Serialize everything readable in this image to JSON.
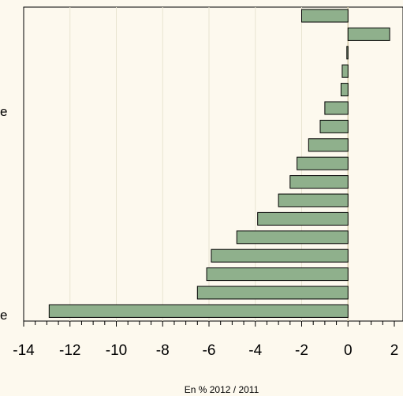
{
  "chart_data": {
    "type": "bar",
    "orientation": "horizontal",
    "xlabel": "En % 2012 / 2011",
    "xlim": [
      -14,
      2
    ],
    "xticks": [
      "-14",
      "-12",
      "-10",
      "-8",
      "-6",
      "-4",
      "-2",
      "0",
      "2"
    ],
    "grid": true,
    "values": [
      -2.0,
      1.8,
      -0.05,
      -0.25,
      -0.3,
      -1.0,
      -1.2,
      -1.7,
      -2.2,
      -2.5,
      -3.0,
      -3.9,
      -4.8,
      -5.9,
      -6.1,
      -6.5,
      -12.9
    ],
    "bar_color": "#8fb08c",
    "bar_edge_color": "#000000",
    "grid_color": "#e8e4d0",
    "zero_line_color": "#d4c9a8",
    "cut_labels": [
      "e",
      "e"
    ]
  }
}
